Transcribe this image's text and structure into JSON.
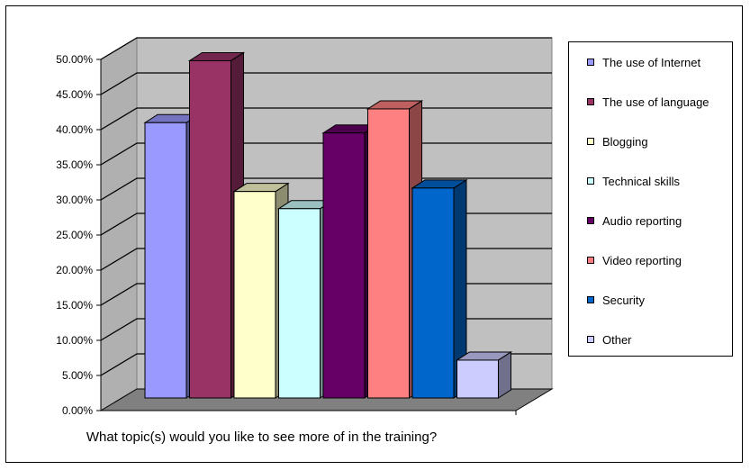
{
  "chart_data": {
    "type": "bar",
    "title": "",
    "xlabel": "What topic(s) would you like to see more of in the training?",
    "ylabel": "",
    "ylim": [
      0,
      0.5
    ],
    "yticks": [
      "0.00%",
      "5.00%",
      "10.00%",
      "15.00%",
      "20.00%",
      "25.00%",
      "30.00%",
      "35.00%",
      "40.00%",
      "45.00%",
      "50.00%"
    ],
    "grid": true,
    "legend_position": "right",
    "style": "3d-clustered-column",
    "series": [
      {
        "name": "The use of Internet",
        "value": 0.4,
        "color": "#9999ff"
      },
      {
        "name": "The use of language",
        "value": 0.49,
        "color": "#993366"
      },
      {
        "name": "Blogging",
        "value": 0.3,
        "color": "#ffffcc"
      },
      {
        "name": "Technical skills",
        "value": 0.275,
        "color": "#ccffff"
      },
      {
        "name": "Audio reporting",
        "value": 0.385,
        "color": "#660066"
      },
      {
        "name": "Video reporting",
        "value": 0.42,
        "color": "#ff8080"
      },
      {
        "name": "Security",
        "value": 0.305,
        "color": "#0066cc"
      },
      {
        "name": "Other",
        "value": 0.055,
        "color": "#ccccff"
      }
    ]
  }
}
